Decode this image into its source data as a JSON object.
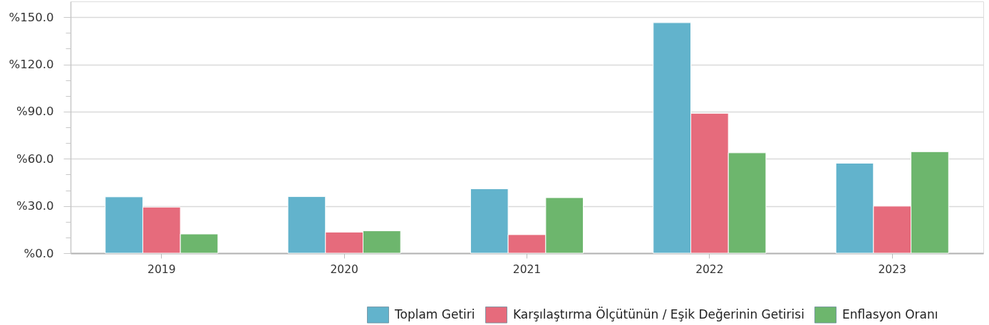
{
  "chart_data": {
    "type": "bar",
    "categories": [
      "2019",
      "2020",
      "2021",
      "2022",
      "2023"
    ],
    "series": [
      {
        "name": "Toplam Getiri",
        "color": "#62b3cc",
        "values": [
          35.8,
          36.0,
          40.9,
          146.5,
          57.2
        ]
      },
      {
        "name": "Karşılaştırma Ölçütünün / Eşik Değerinin Getirisi",
        "color": "#e66b7c",
        "values": [
          29.3,
          13.4,
          11.8,
          88.9,
          29.9
        ]
      },
      {
        "name": "Enflasyon Oranı",
        "color": "#6db66d",
        "values": [
          12.2,
          14.2,
          35.3,
          63.8,
          64.5
        ]
      }
    ],
    "ylim": [
      0,
      160
    ],
    "yticks": [
      {
        "value": 0,
        "label": "%0.0"
      },
      {
        "value": 10,
        "label": null
      },
      {
        "value": 20,
        "label": null
      },
      {
        "value": 30,
        "label": "%30.0"
      },
      {
        "value": 40,
        "label": null
      },
      {
        "value": 50,
        "label": null
      },
      {
        "value": 60,
        "label": "%60.0"
      },
      {
        "value": 70,
        "label": null
      },
      {
        "value": 80,
        "label": null
      },
      {
        "value": 90,
        "label": "%90.0"
      },
      {
        "value": 100,
        "label": null
      },
      {
        "value": 110,
        "label": null
      },
      {
        "value": 120,
        "label": "%120.0"
      },
      {
        "value": 130,
        "label": null
      },
      {
        "value": 140,
        "label": null
      },
      {
        "value": 150,
        "label": "%150.0"
      }
    ],
    "grid": "y",
    "legend": "bottom right"
  }
}
